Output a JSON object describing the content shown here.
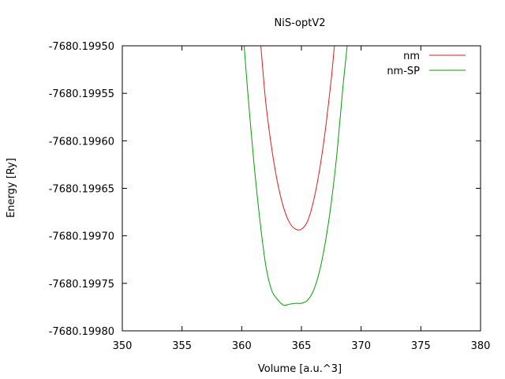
{
  "chart_data": {
    "type": "line",
    "title": "NiS-optV2",
    "xlabel": "Volume [a.u.^3]",
    "ylabel": "Energy [Ry]",
    "xlim": [
      350,
      380
    ],
    "ylim": [
      -7680.1998,
      -7680.1995
    ],
    "xticks": [
      350,
      355,
      360,
      365,
      370,
      375,
      380
    ],
    "xtick_labels": [
      "350",
      "355",
      "360",
      "365",
      "370",
      "375",
      "380"
    ],
    "yticks": [
      -7680.1995,
      -7680.19955,
      -7680.1996,
      -7680.19965,
      -7680.1997,
      -7680.19975,
      -7680.1998
    ],
    "ytick_labels": [
      "-7680.19950",
      "-7680.19955",
      "-7680.19960",
      "-7680.19965",
      "-7680.19970",
      "-7680.19975",
      "-7680.19980"
    ],
    "grid": false,
    "legend_position": "top-right",
    "series": [
      {
        "name": "nm",
        "color": "#e41a1c",
        "x": [
          361.6,
          362.0,
          362.5,
          363.0,
          363.5,
          364.0,
          364.5,
          365.0,
          365.5,
          366.0,
          366.5,
          367.0,
          367.5,
          368.0,
          368.6
        ],
        "y": [
          -7680.1995,
          -7680.199558,
          -7680.199607,
          -7680.199644,
          -7680.19967,
          -7680.199686,
          -7680.199693,
          -7680.199693,
          -7680.199685,
          -7680.199664,
          -7680.199632,
          -7680.199589,
          -7680.199535,
          -7680.199479,
          -7680.1995
        ]
      },
      {
        "name": "nm-SP",
        "color": "#00a000",
        "x": [
          360.2,
          360.5,
          361.0,
          361.5,
          362.0,
          362.5,
          363.0,
          363.5,
          364.0,
          364.5,
          365.0,
          365.5,
          366.0,
          366.5,
          367.0,
          367.5,
          368.0,
          368.5,
          369.0,
          369.5,
          369.9
        ],
        "y": [
          -7680.1995,
          -7680.199548,
          -7680.19962,
          -7680.199681,
          -7680.19973,
          -7680.199757,
          -7680.199767,
          -7680.199773,
          -7680.199772,
          -7680.199771,
          -7680.199771,
          -7680.199768,
          -7680.199758,
          -7680.199738,
          -7680.199707,
          -7680.199665,
          -7680.19961,
          -7680.19954,
          -7680.19948,
          -7680.19942,
          -7680.1995
        ]
      }
    ]
  }
}
